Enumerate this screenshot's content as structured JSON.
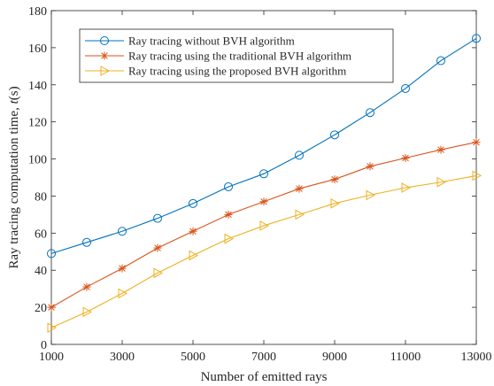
{
  "chart_data": {
    "type": "line",
    "title": "",
    "xlabel": "Number of emitted rays",
    "ylabel_main": "Ray tracing computation time, ",
    "ylabel_var": "t",
    "ylabel_unit": "(s)",
    "x": [
      1000,
      2000,
      3000,
      4000,
      5000,
      6000,
      7000,
      8000,
      9000,
      10000,
      11000,
      12000,
      13000
    ],
    "xlim": [
      1000,
      13000
    ],
    "ylim": [
      0,
      180
    ],
    "xticks": [
      1000,
      3000,
      5000,
      7000,
      9000,
      11000,
      13000
    ],
    "yticks": [
      0,
      20,
      40,
      60,
      80,
      100,
      120,
      140,
      160,
      180
    ],
    "grid": false,
    "legend_position": "top-left",
    "series": [
      {
        "name": "Ray tracing without BVH algorithm",
        "color": "#0072BD",
        "marker": "circle",
        "values": [
          49,
          55,
          61,
          68,
          76,
          85,
          92,
          102,
          113,
          125,
          138,
          153,
          165
        ]
      },
      {
        "name": "Ray tracing using the traditional BVH algorithm",
        "color": "#D95319",
        "marker": "asterisk",
        "values": [
          20,
          31,
          41,
          52,
          61,
          70,
          77,
          84,
          89,
          96,
          100.5,
          105,
          109
        ]
      },
      {
        "name": "Ray tracing using the proposed BVH algorithm",
        "color": "#EDB120",
        "marker": "triangle-right",
        "values": [
          9,
          17.5,
          27.5,
          38.5,
          48,
          57,
          64,
          70,
          76,
          80.5,
          84.5,
          87.5,
          91
        ]
      }
    ]
  }
}
